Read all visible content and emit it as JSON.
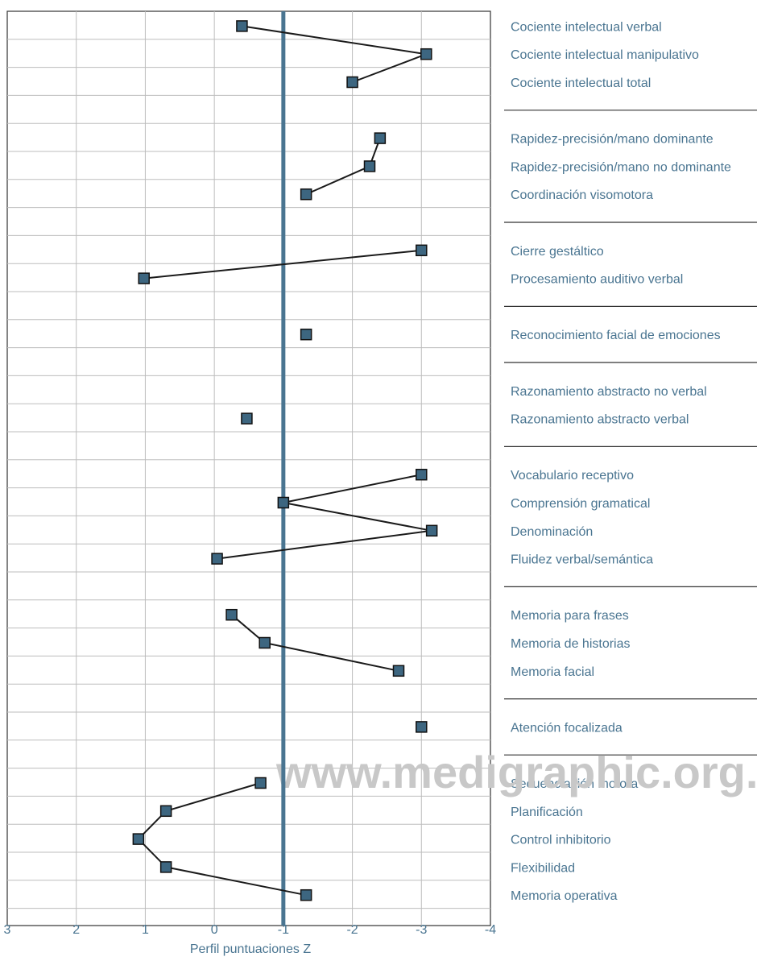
{
  "watermark": "www.medigraphic.org.mx",
  "chart_data": {
    "type": "scatter",
    "xlabel": "Perfil puntuaciones Z",
    "xlim": [
      3,
      -4
    ],
    "x_ticks": [
      "3",
      "2",
      "1",
      "0",
      "-1",
      "-2",
      "-3",
      "-4"
    ],
    "x_tick_values": [
      3,
      2,
      1,
      0,
      -1,
      -2,
      -3,
      -4
    ],
    "reference_line_x": -1,
    "reversed_x_axis": true,
    "grid": true,
    "line_color": "#4a7591",
    "marker_color": "#3d6680",
    "groups": [
      {
        "items": [
          {
            "label": "Cociente intelectual verbal",
            "z": -0.4
          },
          {
            "label": "Cociente intelectual manipulativo",
            "z": -3.07
          },
          {
            "label": "Cociente intelectual total",
            "z": -2.0
          }
        ]
      },
      {
        "items": [
          {
            "label": "Rapidez-precisión/mano dominante",
            "z": -2.4
          },
          {
            "label": "Rapidez-precisión/mano no dominante",
            "z": -2.25
          },
          {
            "label": "Coordinación visomotora",
            "z": -1.33
          }
        ]
      },
      {
        "items": [
          {
            "label": "Cierre gestáltico",
            "z": -3.0
          },
          {
            "label": "Procesamiento auditivo verbal",
            "z": 1.02
          }
        ]
      },
      {
        "items": [
          {
            "label": "Reconocimiento facial de emociones",
            "z": -1.33
          }
        ]
      },
      {
        "items": [
          {
            "label": "Razonamiento abstracto no verbal",
            "z": null
          },
          {
            "label": "Razonamiento abstracto verbal",
            "z": -0.47
          }
        ]
      },
      {
        "items": [
          {
            "label": "Vocabulario receptivo",
            "z": -3.0
          },
          {
            "label": "Comprensión gramatical",
            "z": -1.0
          },
          {
            "label": "Denominación",
            "z": -3.15
          },
          {
            "label": "Fluidez verbal/semántica",
            "z": -0.04
          }
        ]
      },
      {
        "items": [
          {
            "label": "Memoria para frases",
            "z": -0.25
          },
          {
            "label": "Memoria de historias",
            "z": -0.73
          },
          {
            "label": "Memoria facial",
            "z": -2.67
          }
        ]
      },
      {
        "items": [
          {
            "label": "Atención focalizada",
            "z": -3.0
          }
        ]
      },
      {
        "items": [
          {
            "label": "Secuenciación motora",
            "z": -0.67
          },
          {
            "label": "Planificación",
            "z": 0.7
          },
          {
            "label": "Control inhibitorio",
            "z": 1.1
          },
          {
            "label": "Flexibilidad",
            "z": 0.7
          },
          {
            "label": "Memoria operativa",
            "z": -1.33
          }
        ]
      }
    ]
  }
}
